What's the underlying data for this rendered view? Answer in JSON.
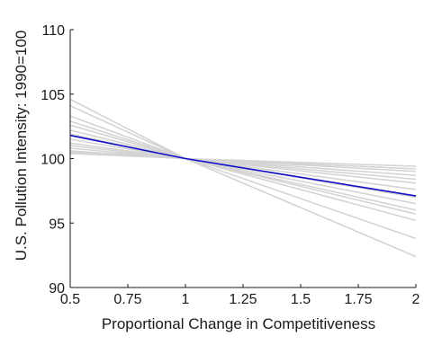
{
  "chart_data": {
    "type": "line",
    "title": "",
    "xlabel": "Proportional Change in Competitiveness",
    "ylabel": "U.S. Pollution Intensity: 1990=100",
    "xlim": [
      0.5,
      2
    ],
    "ylim": [
      90,
      110
    ],
    "x_ticks": [
      0.5,
      0.75,
      1,
      1.25,
      1.5,
      1.75,
      2
    ],
    "x_tick_labels": [
      "0.5",
      "0.75",
      "1",
      "1.25",
      "1.5",
      "1.75",
      "2"
    ],
    "y_ticks": [
      90,
      95,
      100,
      105,
      110
    ],
    "y_tick_labels": [
      "90",
      "95",
      "100",
      "105",
      "110"
    ],
    "grid": false,
    "legend": "none",
    "colors": {
      "highlight": "#1010c8",
      "background_series": "#d4d4d4",
      "axis": "#1a1a1a"
    },
    "highlight_series": {
      "x": [
        0.5,
        1,
        2
      ],
      "y": [
        101.8,
        100,
        97.1
      ]
    },
    "background_series": [
      {
        "x": [
          0.5,
          1,
          2
        ],
        "y": [
          104.6,
          100,
          92.4
        ]
      },
      {
        "x": [
          0.5,
          1,
          2
        ],
        "y": [
          104.1,
          100,
          93.8
        ]
      },
      {
        "x": [
          0.5,
          1,
          2
        ],
        "y": [
          103.3,
          100,
          95.2
        ]
      },
      {
        "x": [
          0.5,
          1,
          2
        ],
        "y": [
          102.9,
          100,
          95.7
        ]
      },
      {
        "x": [
          0.5,
          1,
          2
        ],
        "y": [
          102.6,
          100,
          96.0
        ]
      },
      {
        "x": [
          0.5,
          1,
          2
        ],
        "y": [
          102.2,
          100,
          96.5
        ]
      },
      {
        "x": [
          0.5,
          1,
          2
        ],
        "y": [
          101.9,
          100,
          97.0
        ]
      },
      {
        "x": [
          0.5,
          1,
          2
        ],
        "y": [
          101.5,
          100,
          97.6
        ]
      },
      {
        "x": [
          0.5,
          1,
          2
        ],
        "y": [
          101.2,
          100,
          98.1
        ]
      },
      {
        "x": [
          0.5,
          1,
          2
        ],
        "y": [
          101.0,
          100,
          98.4
        ]
      },
      {
        "x": [
          0.5,
          1,
          2
        ],
        "y": [
          100.8,
          100,
          98.7
        ]
      },
      {
        "x": [
          0.5,
          1,
          2
        ],
        "y": [
          100.6,
          100,
          99.0
        ]
      },
      {
        "x": [
          0.5,
          1,
          2
        ],
        "y": [
          100.5,
          100,
          99.2
        ]
      },
      {
        "x": [
          0.5,
          1,
          2
        ],
        "y": [
          100.4,
          100,
          99.4
        ]
      }
    ]
  }
}
